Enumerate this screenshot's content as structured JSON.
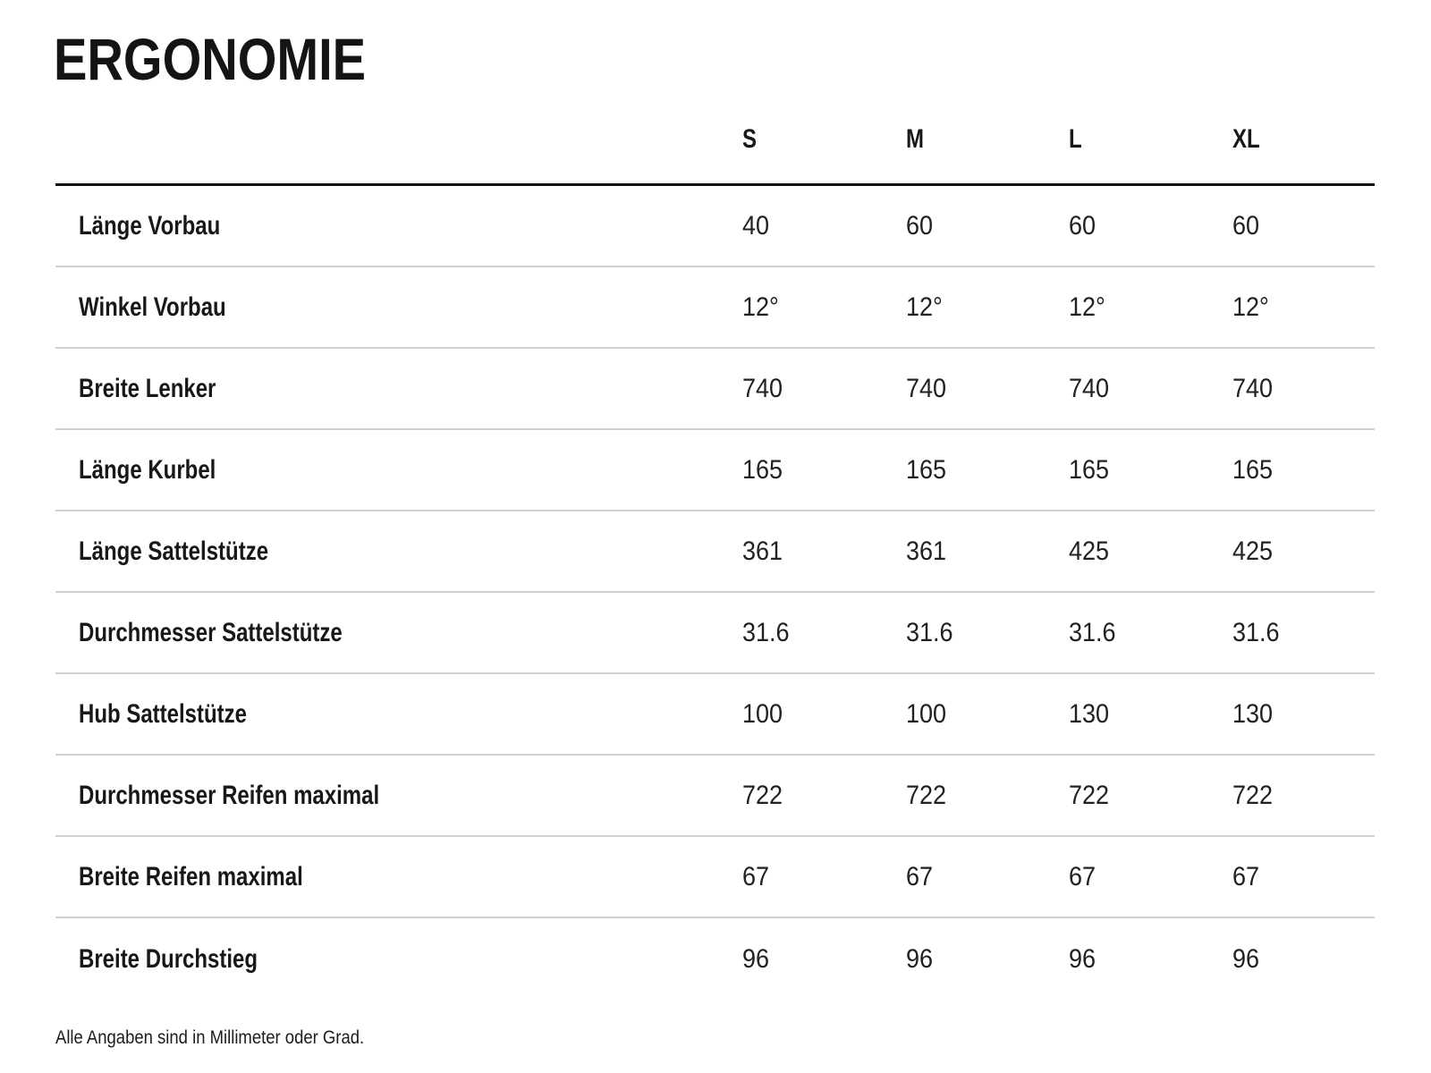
{
  "page": {
    "title": "ERGONOMIE",
    "footnote": "Alle Angaben sind in Millimeter oder Grad."
  },
  "colors": {
    "text": "#181818",
    "thick_line": "#141414",
    "thin_line": "#ccd1d4"
  },
  "table": {
    "columns": [
      "S",
      "M",
      "L",
      "XL"
    ],
    "rows": [
      {
        "label": "Länge Vorbau",
        "values": [
          "40",
          "60",
          "60",
          "60"
        ]
      },
      {
        "label": "Winkel Vorbau",
        "values": [
          "12°",
          "12°",
          "12°",
          "12°"
        ]
      },
      {
        "label": "Breite Lenker",
        "values": [
          "740",
          "740",
          "740",
          "740"
        ]
      },
      {
        "label": "Länge Kurbel",
        "values": [
          "165",
          "165",
          "165",
          "165"
        ]
      },
      {
        "label": "Länge Sattelstütze",
        "values": [
          "361",
          "361",
          "425",
          "425"
        ]
      },
      {
        "label": "Durchmesser Sattelstütze",
        "values": [
          "31.6",
          "31.6",
          "31.6",
          "31.6"
        ]
      },
      {
        "label": "Hub Sattelstütze",
        "values": [
          "100",
          "100",
          "130",
          "130"
        ]
      },
      {
        "label": "Durchmesser Reifen maximal",
        "values": [
          "722",
          "722",
          "722",
          "722"
        ]
      },
      {
        "label": "Breite Reifen maximal",
        "values": [
          "67",
          "67",
          "67",
          "67"
        ]
      },
      {
        "label": "Breite Durchstieg",
        "values": [
          "96",
          "96",
          "96",
          "96"
        ]
      }
    ]
  }
}
